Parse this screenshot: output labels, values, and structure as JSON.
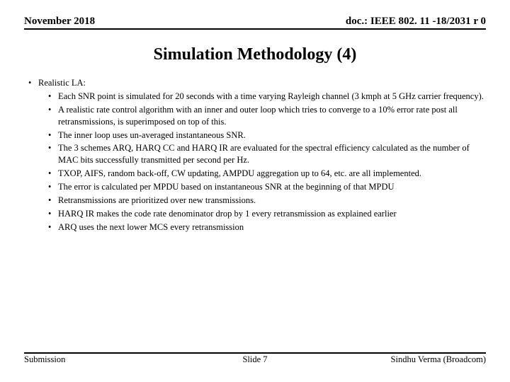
{
  "header": {
    "date": "November 2018",
    "docref": "doc.: IEEE 802. 11 -18/2031 r 0"
  },
  "title": "Simulation Methodology (4)",
  "content": {
    "l1_label": "Realistic LA:",
    "items": [
      "Each SNR point is simulated for 20 seconds with a time varying Rayleigh channel (3 kmph at 5 GHz carrier frequency).",
      "A realistic rate control algorithm with an inner and outer loop which tries to converge to a 10% error rate post all retransmissions, is superimposed on top of this.",
      "The inner loop uses un-averaged instantaneous SNR.",
      "The 3 schemes ARQ, HARQ CC and HARQ IR are evaluated for the spectral efficiency calculated as the number of MAC bits successfully transmitted per second per Hz.",
      "TXOP, AIFS, random back-off, CW updating, AMPDU aggregation up to 64, etc. are all implemented.",
      "The error is calculated per MPDU based on instantaneous SNR at the beginning of that MPDU",
      "Retransmissions are prioritized over new transmissions.",
      "HARQ IR  makes the code rate denominator drop by 1 every retransmission as explained earlier",
      "ARQ uses the next lower MCS every retransmission"
    ]
  },
  "footer": {
    "left": "Submission",
    "center": "Slide 7",
    "right": "Sindhu Verma (Broadcom)"
  }
}
